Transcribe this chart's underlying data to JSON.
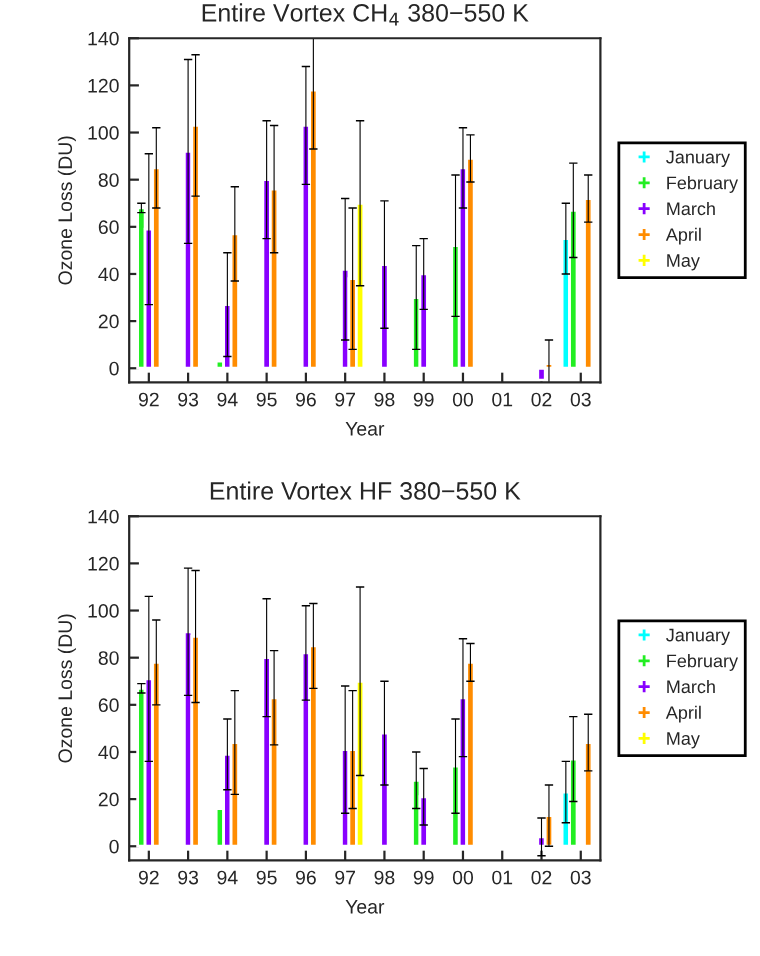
{
  "chart_data": [
    {
      "type": "bar",
      "title": "Entire Vortex CH$_{4}$ 380−550 K",
      "xlabel": "Year",
      "ylabel": "Ozone Loss (DU)",
      "categories": [
        "92",
        "93",
        "94",
        "95",
        "96",
        "97",
        "98",
        "99",
        "00",
        "01",
        "02",
        "03"
      ],
      "ylim": [
        -6,
        140
      ],
      "yticks": [
        0,
        20,
        40,
        60,
        80,
        100,
        120,
        140
      ],
      "legend": "right",
      "marker": "cross",
      "series": [
        {
          "name": "January",
          "color": "#00ffff",
          "values": [
            null,
            null,
            null,
            null,
            null,
            null,
            null,
            null,
            null,
            null,
            null,
            55
          ],
          "errors": [
            null,
            null,
            null,
            null,
            null,
            null,
            null,
            null,
            null,
            null,
            null,
            15
          ]
        },
        {
          "name": "February",
          "color": "#22ee22",
          "values": [
            68,
            null,
            3,
            null,
            null,
            null,
            null,
            30,
            52,
            null,
            null,
            67
          ],
          "errors": [
            2,
            null,
            null,
            null,
            null,
            null,
            null,
            22,
            30,
            null,
            null,
            20
          ]
        },
        {
          "name": "March",
          "color": "#8800ff",
          "values": [
            59,
            92,
            27,
            80,
            103,
            42,
            44,
            40,
            85,
            null,
            -5,
            null
          ],
          "errors": [
            32,
            39,
            22,
            25,
            25,
            30,
            27,
            15,
            17,
            null,
            null,
            null
          ]
        },
        {
          "name": "April",
          "color": "#ff8c00",
          "values": [
            85,
            103,
            57,
            76,
            118,
            38,
            null,
            null,
            89,
            null,
            2,
            72
          ],
          "errors": [
            17,
            30,
            20,
            27,
            25,
            30,
            null,
            null,
            10,
            null,
            10,
            10
          ]
        },
        {
          "name": "May",
          "color": "#ffff00",
          "values": [
            null,
            null,
            null,
            null,
            null,
            70,
            null,
            null,
            null,
            null,
            null,
            null
          ],
          "errors": [
            null,
            null,
            null,
            null,
            null,
            35,
            null,
            null,
            null,
            null,
            null,
            null
          ]
        }
      ]
    },
    {
      "type": "bar",
      "title": "Entire Vortex HF 380−550 K",
      "xlabel": "Year",
      "ylabel": "Ozone Loss (DU)",
      "categories": [
        "92",
        "93",
        "94",
        "95",
        "96",
        "97",
        "98",
        "99",
        "00",
        "01",
        "02",
        "03"
      ],
      "ylim": [
        -6,
        140
      ],
      "yticks": [
        0,
        20,
        40,
        60,
        80,
        100,
        120,
        140
      ],
      "legend": "right",
      "marker": "cross",
      "series": [
        {
          "name": "January",
          "color": "#00ffff",
          "values": [
            null,
            null,
            null,
            null,
            null,
            null,
            null,
            null,
            null,
            null,
            null,
            23
          ],
          "errors": [
            null,
            null,
            null,
            null,
            null,
            null,
            null,
            null,
            null,
            null,
            null,
            13
          ]
        },
        {
          "name": "February",
          "color": "#22ee22",
          "values": [
            67,
            null,
            16,
            null,
            null,
            null,
            null,
            28,
            34,
            null,
            null,
            37
          ],
          "errors": [
            2,
            null,
            null,
            null,
            null,
            null,
            null,
            12,
            20,
            null,
            null,
            18
          ]
        },
        {
          "name": "March",
          "color": "#8800ff",
          "values": [
            71,
            91,
            39,
            80,
            82,
            41,
            48,
            21,
            63,
            null,
            4,
            null
          ],
          "errors": [
            35,
            27,
            15,
            25,
            20,
            27,
            22,
            12,
            25,
            null,
            8,
            null
          ]
        },
        {
          "name": "April",
          "color": "#ff8c00",
          "values": [
            78,
            89,
            44,
            63,
            85,
            41,
            null,
            null,
            78,
            null,
            13,
            44
          ],
          "errors": [
            18,
            28,
            22,
            20,
            18,
            25,
            null,
            null,
            8,
            null,
            13,
            12
          ]
        },
        {
          "name": "May",
          "color": "#ffff00",
          "values": [
            null,
            null,
            null,
            null,
            null,
            70,
            null,
            null,
            null,
            null,
            null,
            null
          ],
          "errors": [
            null,
            null,
            null,
            null,
            null,
            40,
            null,
            null,
            null,
            null,
            null,
            null
          ]
        }
      ]
    }
  ]
}
